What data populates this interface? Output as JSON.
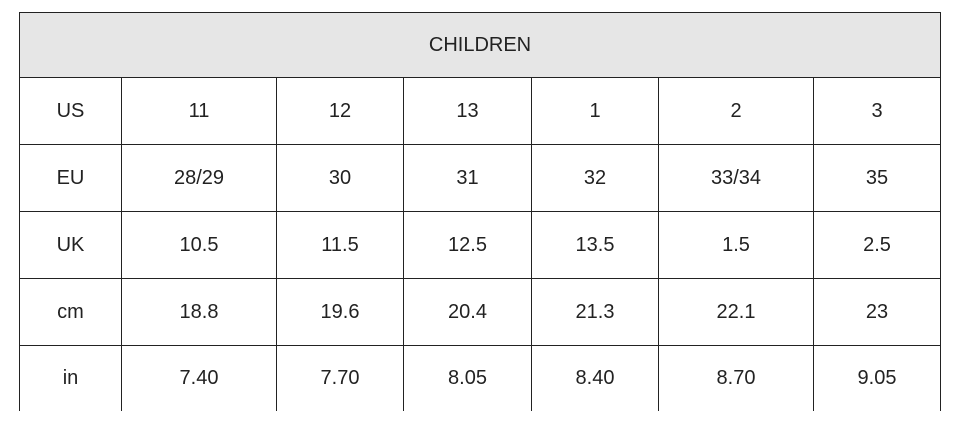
{
  "header": {
    "title": "CHILDREN"
  },
  "table": {
    "rows": [
      [
        "US",
        "11",
        "12",
        "13",
        "1",
        "2",
        "3"
      ],
      [
        "EU",
        "28/29",
        "30",
        "31",
        "32",
        "33/34",
        "35"
      ],
      [
        "UK",
        "10.5",
        "11.5",
        "12.5",
        "13.5",
        "1.5",
        "2.5"
      ],
      [
        "cm",
        "18.8",
        "19.6",
        "20.4",
        "21.3",
        "22.1",
        "23"
      ],
      [
        "in",
        "7.40",
        "7.70",
        "8.05",
        "8.40",
        "8.70",
        "9.05"
      ]
    ]
  }
}
